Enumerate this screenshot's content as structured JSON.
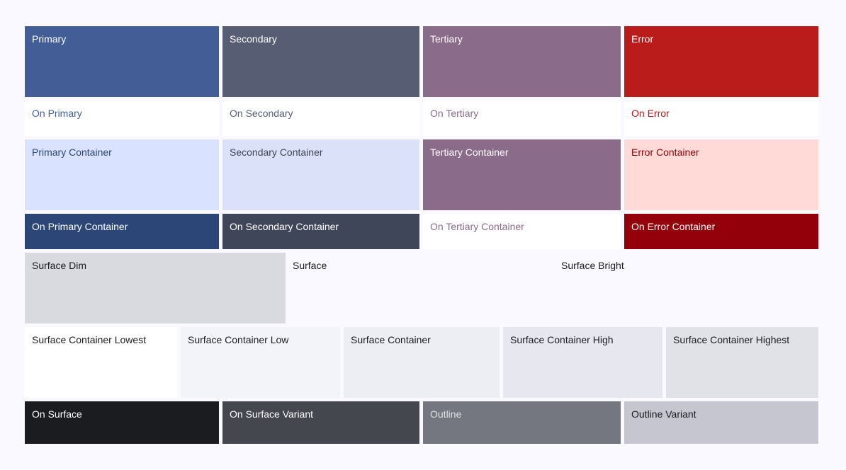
{
  "rows": [
    [
      {
        "label": "Primary",
        "bg": "#435e97",
        "fg": "#ffffff"
      },
      {
        "label": "Secondary",
        "bg": "#575e73",
        "fg": "#ffffff"
      },
      {
        "label": "Tertiary",
        "bg": "#8a6b8a",
        "fg": "#ffffff"
      },
      {
        "label": "Error",
        "bg": "#ba1b1b",
        "fg": "#ffffff"
      }
    ],
    [
      {
        "label": "On Primary",
        "bg": "#ffffff",
        "fg": "#435e97"
      },
      {
        "label": "On Secondary",
        "bg": "#ffffff",
        "fg": "#575e73"
      },
      {
        "label": "On Tertiary",
        "bg": "#ffffff",
        "fg": "#8a6b8a"
      },
      {
        "label": "On Error",
        "bg": "#ffffff",
        "fg": "#ba1b1b"
      }
    ],
    [
      {
        "label": "Primary Container",
        "bg": "#d9e2ff",
        "fg": "#2c4677"
      },
      {
        "label": "Secondary Container",
        "bg": "#dce1fa",
        "fg": "#404659"
      },
      {
        "label": "Tertiary Container",
        "bg": "#8a6b8a",
        "fg": "#ffffff"
      },
      {
        "label": "Error Container",
        "bg": "#ffdad6",
        "fg": "#93000a"
      }
    ],
    [
      {
        "label": "On Primary Container",
        "bg": "#2c4677",
        "fg": "#ffffff"
      },
      {
        "label": "On Secondary Container",
        "bg": "#404659",
        "fg": "#ffffff"
      },
      {
        "label": "On Tertiary Container",
        "bg": "#ffffff",
        "fg": "#8a6b8a"
      },
      {
        "label": "On Error Container",
        "bg": "#93000a",
        "fg": "#ffffff"
      }
    ],
    [
      {
        "label": "Surface Dim",
        "bg": "#d9dadf",
        "fg": "#1b1c20"
      },
      {
        "label": "Surface",
        "bg": "#f9f9ff",
        "fg": "#1b1c20"
      },
      {
        "label": "Surface Bright",
        "bg": "#f9f9ff",
        "fg": "#1b1c20"
      }
    ],
    [
      {
        "label": "Surface Container Lowest",
        "bg": "#ffffff",
        "fg": "#1b1c20"
      },
      {
        "label": "Surface Container Low",
        "bg": "#f3f4fa",
        "fg": "#1b1c20"
      },
      {
        "label": "Surface Container",
        "bg": "#edeef4",
        "fg": "#1b1c20"
      },
      {
        "label": "Surface Container High",
        "bg": "#e7e8ef",
        "fg": "#1b1c20"
      },
      {
        "label": "Surface Container Highest",
        "bg": "#e1e2e8",
        "fg": "#1b1c20"
      }
    ],
    [
      {
        "label": "On Surface",
        "bg": "#1b1c20",
        "fg": "#ffffff"
      },
      {
        "label": "On Surface Variant",
        "bg": "#45474f",
        "fg": "#ffffff"
      },
      {
        "label": "Outline",
        "bg": "#747680",
        "fg": "#e1e2e8"
      },
      {
        "label": "Outline Variant",
        "bg": "#c5c6d0",
        "fg": "#1b1c20"
      }
    ]
  ]
}
